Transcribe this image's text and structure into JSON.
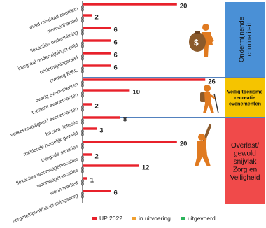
{
  "chart_data": {
    "type": "bar",
    "orientation": "horizontal",
    "categories": [
      "meld misdaad anoniem",
      "mensenhandel",
      "flexacties ondermijning",
      "integraal ondermijningsbeeld",
      "ondermijningstafel",
      "overleg RIEC",
      "overig evenementen",
      "toezicht evenementen",
      "verkeersveiligheid evenementen",
      "hazard detectie",
      "meldcode huiselijk geweld",
      "integrale situaties",
      "flexacties woonwagenlocaties",
      "woonwagenlocaties",
      "woonoverlast",
      "zorgmeldpunt/handhavingszorg"
    ],
    "series": [
      {
        "name": "UP 2022",
        "color": "#e8212b",
        "values": [
          20,
          2,
          6,
          6,
          6,
          6,
          26,
          10,
          2,
          8,
          3,
          20,
          2,
          12,
          1,
          6
        ]
      },
      {
        "name": "in uitvoering",
        "color": "#f0a030",
        "values": [
          0,
          0,
          0,
          0,
          0,
          0,
          0,
          0,
          0,
          0,
          0,
          0,
          0,
          0,
          0,
          0
        ]
      },
      {
        "name": "uitgevoerd",
        "color": "#2bb45a",
        "values": [
          0,
          0,
          0,
          0,
          0,
          0,
          0,
          0,
          0,
          0,
          0,
          0,
          0,
          0,
          0,
          0
        ]
      }
    ],
    "xlim": [
      0,
      27
    ],
    "grid": false,
    "legend": "bottom",
    "groups": [
      {
        "label": "Ondermijnende criminaliteit",
        "color": "#4a90d6",
        "count": 6
      },
      {
        "label": "Veilig toerisme recreatie evenementen",
        "color": "#f5c400",
        "count": 3
      },
      {
        "label": "Overlast/ gewold snijvlak Zorg en Veiligheid",
        "color": "#f04a4a",
        "count": 7
      }
    ]
  }
}
